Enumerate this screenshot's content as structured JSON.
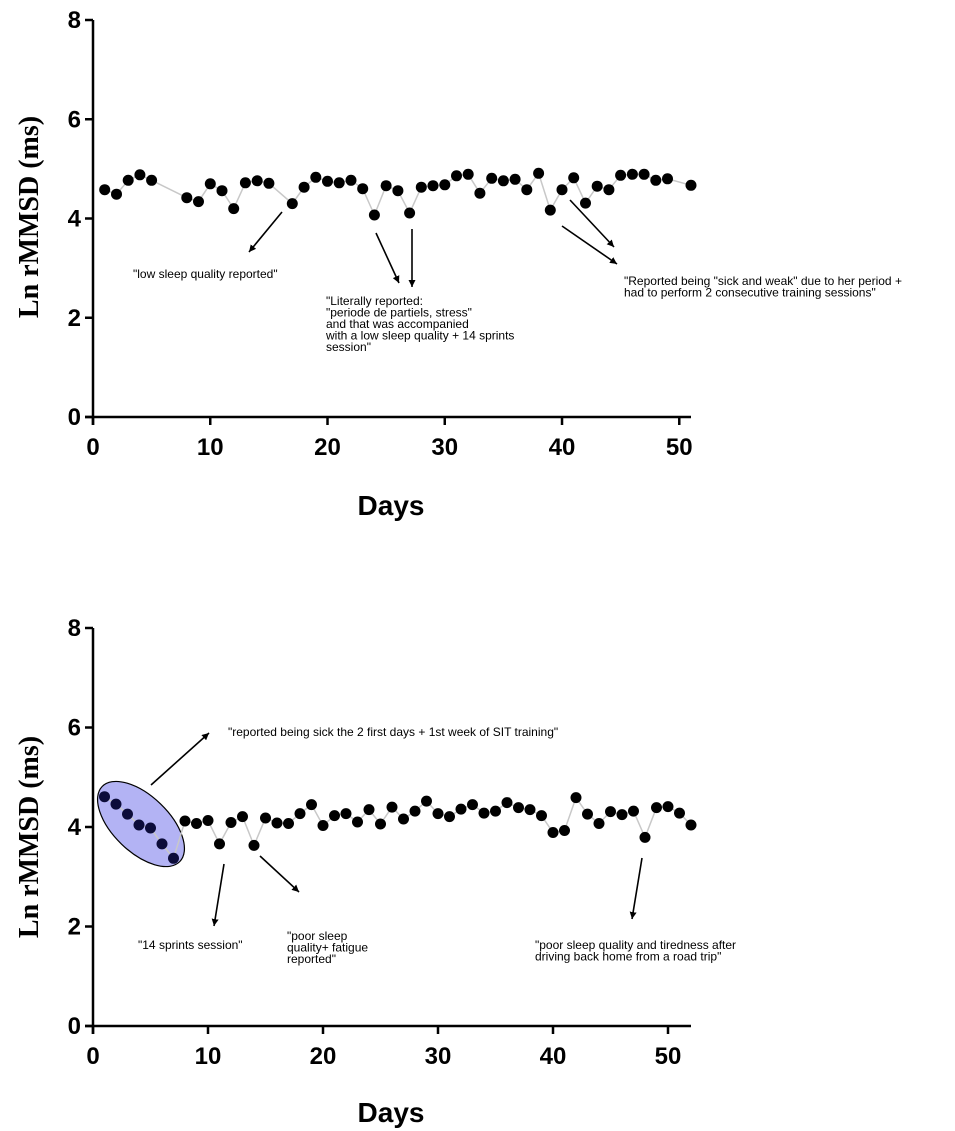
{
  "chart_data": [
    {
      "type": "scatter",
      "xlabel": "Days",
      "ylabel": "Ln rMMSD  (ms)",
      "xlim": [
        0,
        51
      ],
      "ylim": [
        0,
        8
      ],
      "xticks": [
        0,
        10,
        20,
        30,
        40,
        50
      ],
      "yticks": [
        0,
        2,
        4,
        6,
        8
      ],
      "series": [
        {
          "points": [
            [
              1,
              4.58
            ],
            [
              2,
              4.49
            ],
            [
              3,
              4.77
            ],
            [
              4,
              4.88
            ],
            [
              5,
              4.77
            ],
            [
              8,
              4.42
            ],
            [
              9,
              4.34
            ],
            [
              10,
              4.7
            ],
            [
              11,
              4.56
            ],
            [
              12,
              4.2
            ],
            [
              13,
              4.72
            ],
            [
              14,
              4.76
            ],
            [
              15,
              4.71
            ],
            [
              17,
              4.3
            ],
            [
              18,
              4.63
            ],
            [
              19,
              4.83
            ],
            [
              20,
              4.75
            ],
            [
              21,
              4.72
            ],
            [
              22,
              4.77
            ],
            [
              23,
              4.6
            ],
            [
              24,
              4.07
            ],
            [
              25,
              4.66
            ],
            [
              26,
              4.56
            ],
            [
              27,
              4.11
            ],
            [
              28,
              4.63
            ],
            [
              29,
              4.66
            ],
            [
              30,
              4.68
            ],
            [
              31,
              4.86
            ],
            [
              32,
              4.89
            ],
            [
              33,
              4.51
            ],
            [
              34,
              4.81
            ],
            [
              35,
              4.76
            ],
            [
              36,
              4.79
            ],
            [
              37,
              4.58
            ],
            [
              38,
              4.91
            ],
            [
              39,
              4.17
            ],
            [
              40,
              4.58
            ],
            [
              41,
              4.82
            ],
            [
              42,
              4.31
            ],
            [
              43,
              4.65
            ],
            [
              44,
              4.58
            ],
            [
              45,
              4.87
            ],
            [
              46,
              4.89
            ],
            [
              47,
              4.89
            ],
            [
              48,
              4.77
            ],
            [
              49,
              4.8
            ],
            [
              51,
              4.67
            ]
          ]
        }
      ],
      "annotations": [
        {
          "lines": [
            "\"low sleep quality reported\""
          ]
        },
        {
          "lines": [
            "\"Literally reported:",
            "\"periode de partiels, stress\"",
            "and that was accompanied",
            "with a low sleep quality + 14 sprints",
            "session\""
          ]
        },
        {
          "lines": [
            "\"Reported being \"sick and weak\" due to her period +",
            "had to perform 2 consecutive training sessions\""
          ]
        }
      ]
    },
    {
      "type": "scatter",
      "xlabel": "Days",
      "ylabel": "Ln rMMSD  (ms)",
      "xlim": [
        0,
        52
      ],
      "ylim": [
        0,
        8
      ],
      "xticks": [
        0,
        10,
        20,
        30,
        40,
        50
      ],
      "yticks": [
        0,
        2,
        4,
        6,
        8
      ],
      "series": [
        {
          "points": [
            [
              1,
              4.61
            ],
            [
              2,
              4.46
            ],
            [
              3,
              4.26
            ],
            [
              4,
              4.04
            ],
            [
              5,
              3.98
            ],
            [
              6,
              3.66
            ],
            [
              7,
              3.37
            ],
            [
              8,
              4.12
            ],
            [
              9,
              4.07
            ],
            [
              10,
              4.13
            ],
            [
              11,
              3.66
            ],
            [
              12,
              4.09
            ],
            [
              13,
              4.21
            ],
            [
              14,
              3.63
            ],
            [
              15,
              4.18
            ],
            [
              16,
              4.08
            ],
            [
              17,
              4.07
            ],
            [
              18,
              4.27
            ],
            [
              19,
              4.45
            ],
            [
              20,
              4.03
            ],
            [
              21,
              4.23
            ],
            [
              22,
              4.27
            ],
            [
              23,
              4.1
            ],
            [
              24,
              4.35
            ],
            [
              25,
              4.06
            ],
            [
              26,
              4.4
            ],
            [
              27,
              4.16
            ],
            [
              28,
              4.32
            ],
            [
              29,
              4.52
            ],
            [
              30,
              4.27
            ],
            [
              31,
              4.21
            ],
            [
              32,
              4.36
            ],
            [
              33,
              4.45
            ],
            [
              34,
              4.28
            ],
            [
              35,
              4.32
            ],
            [
              36,
              4.49
            ],
            [
              37,
              4.39
            ],
            [
              38,
              4.35
            ],
            [
              39,
              4.23
            ],
            [
              40,
              3.89
            ],
            [
              41,
              3.93
            ],
            [
              42,
              4.59
            ],
            [
              43,
              4.26
            ],
            [
              44,
              4.07
            ],
            [
              45,
              4.31
            ],
            [
              46,
              4.25
            ],
            [
              47,
              4.32
            ],
            [
              48,
              3.79
            ],
            [
              49,
              4.39
            ],
            [
              50,
              4.41
            ],
            [
              51,
              4.28
            ],
            [
              52,
              4.04
            ]
          ]
        }
      ],
      "annotations": [
        {
          "lines": [
            "\"reported being sick the 2 first days + 1st week of SIT training\""
          ]
        },
        {
          "lines": [
            "\"14 sprints session\""
          ]
        },
        {
          "lines": [
            "\"poor sleep",
            "quality+ fatigue",
            "reported\""
          ]
        },
        {
          "lines": [
            "\"poor sleep quality and tiredness after",
            "driving back home from a road trip\""
          ]
        }
      ]
    }
  ]
}
